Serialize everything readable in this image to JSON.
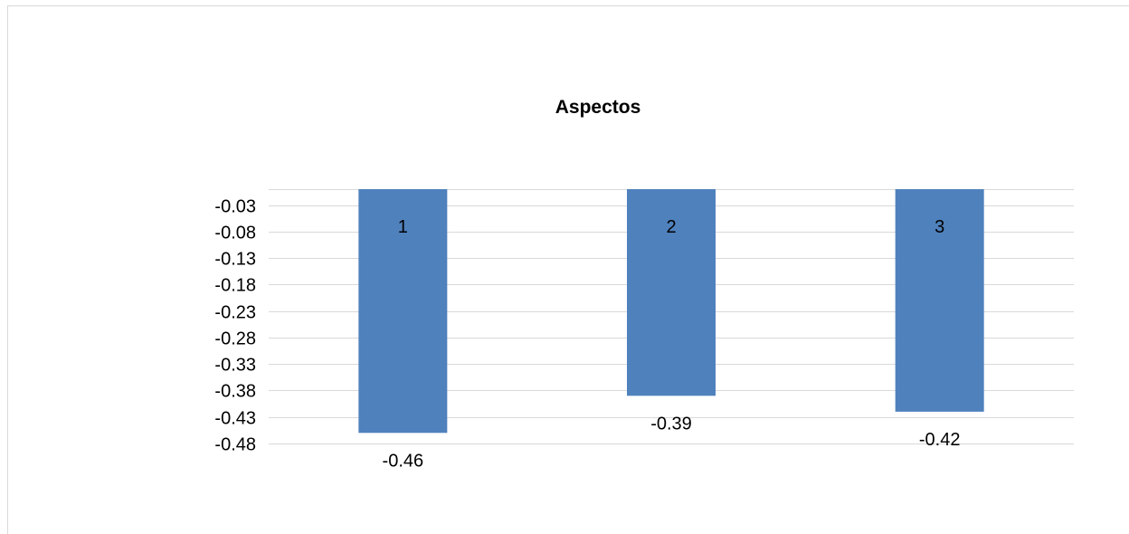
{
  "chart_data": {
    "type": "bar",
    "title": "Aspectos",
    "categories": [
      "1",
      "2",
      "3"
    ],
    "values": [
      -0.46,
      -0.39,
      -0.42
    ],
    "value_labels": [
      "-0.46",
      "-0.39",
      "-0.42"
    ],
    "yticks": [
      "-0.03",
      "-0.08",
      "-0.13",
      "-0.18",
      "-0.23",
      "-0.28",
      "-0.33",
      "-0.38",
      "-0.43",
      "-0.48"
    ],
    "ylim": [
      -0.48,
      0.0
    ],
    "grid": true,
    "bar_color": "#4f81bd",
    "grid_color": "#d9d9d9"
  }
}
